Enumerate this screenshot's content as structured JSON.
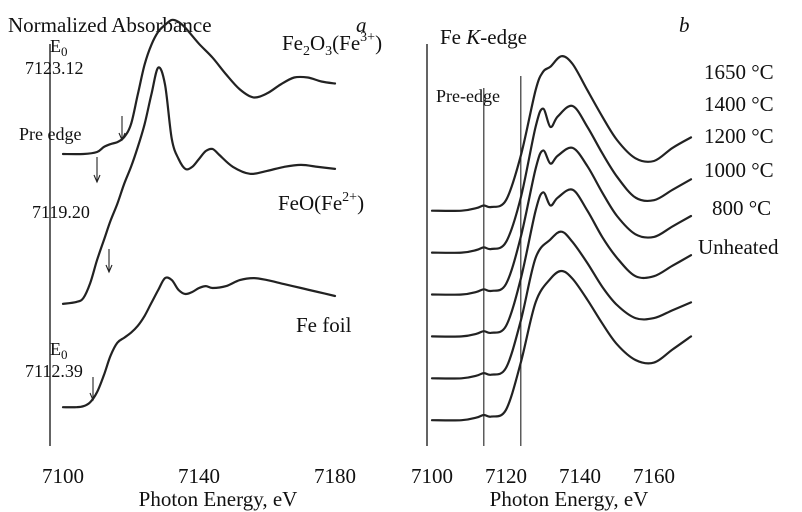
{
  "y_axis_title": "Normalized Absorbance",
  "chart_data": [
    {
      "panel": "a",
      "type": "line",
      "xlabel": "Photon Energy, eV",
      "ylabel": "Normalized Absorbance",
      "xlim": [
        7100,
        7190
      ],
      "ylim": [
        0,
        4.3
      ],
      "xticks": [
        7100,
        7140,
        7180
      ],
      "grid": false,
      "series": [
        {
          "name": "Fe2O3(Fe3+)",
          "label_parts": [
            "Fe",
            "2",
            "O",
            "3",
            "(Fe",
            "3+",
            ")"
          ],
          "x": [
            7100,
            7106,
            7110,
            7112,
            7114,
            7116,
            7118,
            7120,
            7122,
            7124,
            7126,
            7128,
            7130,
            7132,
            7134,
            7136,
            7140,
            7144,
            7148,
            7152,
            7156,
            7160,
            7164,
            7168,
            7172,
            7176,
            7180
          ],
          "y": [
            2.85,
            2.85,
            2.87,
            2.92,
            2.95,
            2.97,
            3.02,
            3.15,
            3.45,
            3.75,
            3.95,
            4.08,
            4.15,
            4.2,
            4.18,
            4.12,
            3.96,
            3.82,
            3.65,
            3.5,
            3.42,
            3.46,
            3.55,
            3.62,
            3.62,
            3.58,
            3.56
          ]
        },
        {
          "name": "FeO(Fe2+)",
          "label_parts": [
            "FeO(Fe",
            "2+",
            ")"
          ],
          "x": [
            7100,
            7104,
            7106,
            7108,
            7110,
            7112,
            7114,
            7116,
            7118,
            7120,
            7122,
            7124,
            7126,
            7128,
            7130,
            7132,
            7134,
            7136,
            7138,
            7140,
            7142,
            7144,
            7146,
            7150,
            7155,
            7160,
            7165,
            7170,
            7175,
            7180
          ],
          "y": [
            1.34,
            1.36,
            1.4,
            1.55,
            1.78,
            1.98,
            2.18,
            2.35,
            2.55,
            2.72,
            2.92,
            3.15,
            3.45,
            3.72,
            3.55,
            3.0,
            2.8,
            2.7,
            2.72,
            2.8,
            2.88,
            2.9,
            2.84,
            2.72,
            2.65,
            2.68,
            2.72,
            2.74,
            2.72,
            2.7
          ]
        },
        {
          "name": "Fe foil",
          "label_parts": [
            "Fe foil"
          ],
          "x": [
            7100,
            7104,
            7106,
            7108,
            7110,
            7112,
            7114,
            7116,
            7118,
            7120,
            7122,
            7124,
            7126,
            7128,
            7130,
            7132,
            7134,
            7136,
            7138,
            7140,
            7142,
            7144,
            7148,
            7152,
            7156,
            7160,
            7165,
            7170,
            7175,
            7180
          ],
          "y": [
            0.3,
            0.3,
            0.31,
            0.35,
            0.45,
            0.62,
            0.82,
            0.95,
            1.0,
            1.05,
            1.12,
            1.22,
            1.35,
            1.48,
            1.6,
            1.58,
            1.48,
            1.44,
            1.46,
            1.5,
            1.52,
            1.5,
            1.52,
            1.58,
            1.6,
            1.58,
            1.54,
            1.5,
            1.46,
            1.42
          ]
        }
      ],
      "annotations": [
        {
          "lines": [
            "E",
            "0",
            "7123.12"
          ],
          "x": 7123.12,
          "y": 2.98,
          "kind": "edge"
        },
        {
          "lines": [
            "Pre edge"
          ],
          "x": 7112,
          "y": 2.93,
          "kind": "pre-edge"
        },
        {
          "lines": [
            "7119.20"
          ],
          "x": 7119.2,
          "y": 2.55,
          "kind": "edge"
        },
        {
          "lines": [
            "E",
            "0",
            "7112.39"
          ],
          "x": 7112.39,
          "y": 0.62,
          "kind": "edge"
        }
      ],
      "panel_label": "a"
    },
    {
      "panel": "b",
      "type": "line",
      "xlabel": "Photon Energy, eV",
      "xlim": [
        7100,
        7170
      ],
      "ylim": [
        0,
        8.4
      ],
      "xticks": [
        7100,
        7120,
        7140,
        7160
      ],
      "grid": false,
      "vlines": [
        {
          "x": 7114,
          "label": "Pre-edge"
        },
        {
          "x": 7124,
          "label_parts": [
            "Fe ",
            "K",
            "-edge"
          ]
        }
      ],
      "series": [
        {
          "name": "1650 °C",
          "x": [
            7100,
            7108,
            7112,
            7114,
            7116,
            7120,
            7124,
            7128,
            7130,
            7132,
            7135,
            7138,
            7142,
            7146,
            7150,
            7155,
            7160,
            7165,
            7170
          ],
          "y": [
            4.95,
            4.95,
            5.0,
            5.05,
            5.02,
            5.15,
            6.0,
            7.25,
            7.6,
            7.7,
            7.9,
            7.75,
            7.25,
            6.75,
            6.3,
            5.95,
            5.9,
            6.15,
            6.35
          ]
        },
        {
          "name": "1400 °C",
          "x": [
            7100,
            7108,
            7112,
            7114,
            7116,
            7120,
            7124,
            7128,
            7130,
            7132,
            7134,
            7138,
            7142,
            7146,
            7150,
            7155,
            7160,
            7165,
            7170
          ],
          "y": [
            4.15,
            4.15,
            4.2,
            4.25,
            4.22,
            4.35,
            5.2,
            6.55,
            6.9,
            6.55,
            6.75,
            6.95,
            6.55,
            6.05,
            5.6,
            5.2,
            5.15,
            5.35,
            5.55
          ]
        },
        {
          "name": "1200 °C",
          "x": [
            7100,
            7108,
            7112,
            7114,
            7116,
            7120,
            7124,
            7128,
            7130,
            7132,
            7134,
            7138,
            7142,
            7146,
            7150,
            7155,
            7160,
            7165,
            7170
          ],
          "y": [
            3.35,
            3.35,
            3.4,
            3.45,
            3.42,
            3.55,
            4.45,
            5.75,
            6.1,
            5.85,
            6.0,
            6.15,
            5.8,
            5.3,
            4.85,
            4.5,
            4.45,
            4.65,
            4.85
          ]
        },
        {
          "name": "1000 °C",
          "x": [
            7100,
            7108,
            7112,
            7114,
            7116,
            7120,
            7124,
            7128,
            7130,
            7132,
            7134,
            7138,
            7142,
            7146,
            7150,
            7155,
            7160,
            7165,
            7170
          ],
          "y": [
            2.55,
            2.55,
            2.6,
            2.65,
            2.62,
            2.75,
            3.65,
            4.95,
            5.3,
            5.05,
            5.2,
            5.35,
            4.95,
            4.45,
            4.05,
            3.7,
            3.7,
            3.9,
            4.1
          ]
        },
        {
          "name": "800 °C",
          "x": [
            7100,
            7108,
            7112,
            7114,
            7116,
            7120,
            7124,
            7128,
            7132,
            7135,
            7138,
            7142,
            7146,
            7150,
            7155,
            7160,
            7165,
            7170
          ],
          "y": [
            1.75,
            1.75,
            1.8,
            1.85,
            1.82,
            1.95,
            2.85,
            4.05,
            4.4,
            4.55,
            4.35,
            3.95,
            3.5,
            3.15,
            2.9,
            2.9,
            3.05,
            3.2
          ]
        },
        {
          "name": "Unheated",
          "x": [
            7100,
            7108,
            7112,
            7114,
            7116,
            7120,
            7124,
            7128,
            7132,
            7135,
            7138,
            7142,
            7146,
            7150,
            7155,
            7160,
            7165,
            7170
          ],
          "y": [
            0.95,
            0.95,
            1.0,
            1.05,
            1.02,
            1.15,
            2.05,
            3.2,
            3.65,
            3.8,
            3.65,
            3.25,
            2.8,
            2.4,
            2.1,
            2.05,
            2.3,
            2.55
          ]
        }
      ],
      "panel_label": "b"
    }
  ]
}
